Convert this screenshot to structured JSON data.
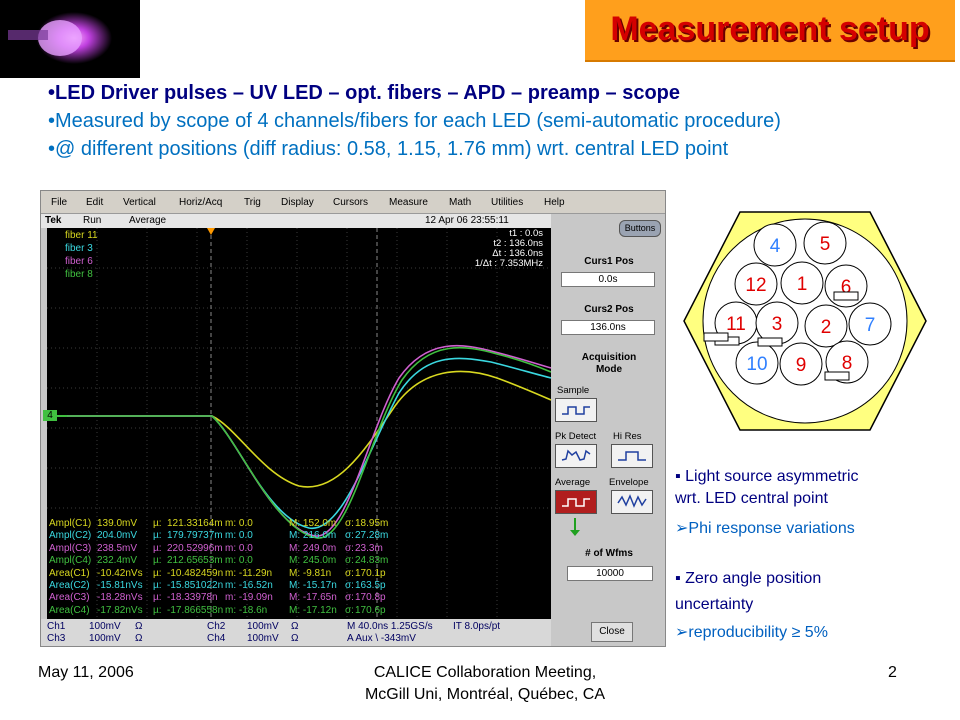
{
  "title": "Measurement setup",
  "bullets": [
    "LED Driver pulses – UV LED – opt. fibers – APD – preamp – scope",
    "Measured by scope of 4 channels/fibers for each LED (semi-automatic procedure)",
    "@ different positions (diff radius: 0.58, 1.15, 1.76 mm) wrt. central LED point"
  ],
  "bullet_mark": "•",
  "scope": {
    "menu": [
      "File",
      "Edit",
      "Vertical",
      "Horiz/Acq",
      "Trig",
      "Display",
      "Cursors",
      "Measure",
      "Math",
      "Utilities",
      "Help"
    ],
    "status": {
      "brand": "Tek",
      "run": "Run",
      "mode": "Average",
      "datetime": "12 Apr 06 23:55:11"
    },
    "channels": [
      {
        "label": "fiber 11",
        "color": "#d8d820"
      },
      {
        "label": "fiber 3",
        "color": "#3ad8e0"
      },
      {
        "label": "fiber 6",
        "color": "#d060d0"
      },
      {
        "label": "fiber 8",
        "color": "#40c040"
      }
    ],
    "ch_marker": "4",
    "cursor_info": [
      "t1 :    0.0s",
      "t2 :    136.0ns",
      "Δt :    136.0ns",
      "1/Δt :    7.353MHz"
    ],
    "measurements": [
      [
        "Ampl(C1)",
        "139.0mV",
        "µ:",
        "121.33164m",
        "m: 0.0",
        "M: 152.0m",
        "σ:",
        "18.95m"
      ],
      [
        "Ampl(C2)",
        "204.0mV",
        "µ:",
        "179.79737m",
        "m: 0.0",
        "M: 216.0m",
        "σ:",
        "27.28m"
      ],
      [
        "Ampl(C3)",
        "238.5mV",
        "µ:",
        "220.52996m",
        "m: 0.0",
        "M: 249.0m",
        "σ:",
        "23.3m"
      ],
      [
        "Ampl(C4)",
        "232.4mV",
        "µ:",
        "212.65653m",
        "m: 0.0",
        "M: 245.0m",
        "σ:",
        "24.83m"
      ],
      [
        "Area(C1)",
        "-10.42nVs",
        "µ:",
        "-10.482459n",
        "m: -11.29n",
        "M: -9.81n",
        "σ:",
        "170.1p"
      ],
      [
        "Area(C2)",
        "-15.81nVs",
        "µ:",
        "-15.851022n",
        "m: -16.52n",
        "M: -15.17n",
        "σ:",
        "163.5p"
      ],
      [
        "Area(C3)",
        "-18.28nVs",
        "µ:",
        "-18.33978n",
        "m: -19.09n",
        "M: -17.65n",
        "σ:",
        "170.8p"
      ],
      [
        "Area(C4)",
        "-17.82nVs",
        "µ:",
        "-17.866558n",
        "m: -18.6n",
        "M: -17.12n",
        "σ:",
        "170.6p"
      ]
    ],
    "bottom": {
      "ch1": "Ch1",
      "ch1_scale": "100mV",
      "ch1_ohm": "Ω",
      "ch2": "Ch2",
      "ch2_scale": "100mV",
      "ch2_ohm": "Ω",
      "ch3": "Ch3",
      "ch3_scale": "100mV",
      "ch3_ohm": "Ω",
      "ch4": "Ch4",
      "ch4_scale": "100mV",
      "ch4_ohm": "Ω",
      "timebase": "M 40.0ns 1.25GS/s",
      "it": "IT 8.0ps/pt",
      "trigger": "A  Aux  \\  -343mV"
    },
    "panel": {
      "buttons": "Buttons",
      "curs1_label": "Curs1 Pos",
      "curs1_value": "0.0s",
      "curs2_label": "Curs2 Pos",
      "curs2_value": "136.0ns",
      "acq_label": "Acquisition",
      "acq_label2": "Mode",
      "modes": [
        "Sample",
        "Pk Detect",
        "Hi Res",
        "Average",
        "Envelope"
      ],
      "wfms_label": "# of Wfms",
      "wfms_value": "10000",
      "close": "Close"
    }
  },
  "fibers": {
    "labels": [
      "4",
      "5",
      "12",
      "1",
      "6",
      "11",
      "3",
      "2",
      "7",
      "10",
      "9",
      "8"
    ],
    "red_color": "#e00000",
    "blue_color": "#3080ff"
  },
  "notes": [
    {
      "mark": "▪",
      "text": "Light source asymmetric"
    },
    {
      "mark": "",
      "text": "wrt. LED central point"
    },
    {
      "mark": "➢",
      "text": "Phi response variations"
    },
    {
      "mark": "▪",
      "text": "Zero angle position"
    },
    {
      "mark": "",
      "text": "uncertainty"
    },
    {
      "mark": "➢",
      "text": "reproducibility ≥ 5%"
    }
  ],
  "footer": {
    "date": "May 11, 2006",
    "meeting1": "CALICE Collaboration Meeting,",
    "meeting2": "McGill Uni,  Montréal, Québec, CA",
    "page": "2"
  }
}
